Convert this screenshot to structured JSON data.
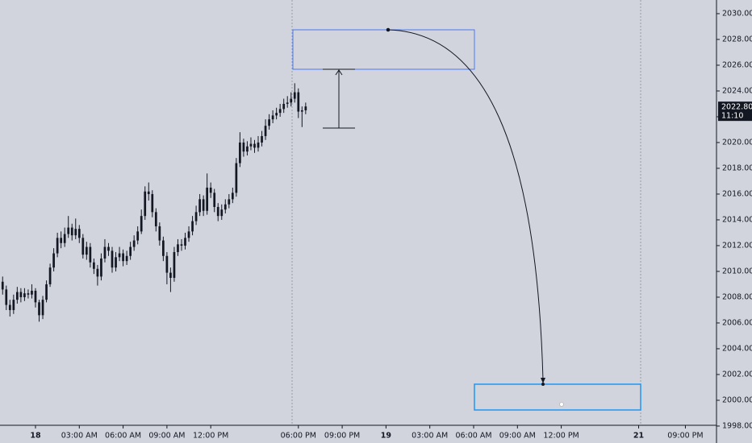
{
  "chart_data": {
    "type": "candlestick",
    "color": "#131722",
    "x": [
      -2.25,
      -2,
      -1.75,
      -1.5,
      -1.25,
      -1,
      -0.75,
      -0.5,
      -0.25,
      0,
      0.25,
      0.5,
      0.75,
      1,
      1.25,
      1.5,
      1.75,
      2,
      2.25,
      2.5,
      2.75,
      3,
      3.25,
      3.5,
      3.75,
      4,
      4.25,
      4.5,
      4.75,
      5,
      5.25,
      5.5,
      5.75,
      6,
      6.25,
      6.5,
      6.75,
      7,
      7.25,
      7.5,
      7.75,
      8,
      8.25,
      8.5,
      8.75,
      9,
      9.25,
      9.5,
      9.75,
      10,
      10.25,
      10.5,
      10.75,
      11,
      11.25,
      11.5,
      11.75,
      12,
      12.25,
      12.5,
      12.75,
      13,
      13.25,
      13.5,
      13.75,
      14,
      14.25,
      14.5,
      14.75,
      15,
      15.25,
      15.5,
      15.75,
      16,
      16.25,
      16.5,
      16.75,
      17,
      17.25,
      17.5,
      17.75,
      18,
      18.25,
      18.5
    ],
    "open": [
      2009.2,
      2008.6,
      2007.4,
      2007.0,
      2007.8,
      2008.4,
      2008.0,
      2008.3,
      2008.2,
      2008.5,
      2007.6,
      2006.6,
      2007.8,
      2009.0,
      2010.3,
      2011.4,
      2012.6,
      2012.2,
      2012.9,
      2013.4,
      2012.8,
      2013.3,
      2012.6,
      2011.3,
      2011.9,
      2010.7,
      2010.2,
      2009.6,
      2011.0,
      2011.9,
      2011.6,
      2010.3,
      2011.1,
      2011.4,
      2010.8,
      2011.2,
      2011.9,
      2012.4,
      2013.1,
      2014.3,
      2016.2,
      2016.0,
      2014.6,
      2013.5,
      2012.4,
      2011.2,
      2009.9,
      2009.5,
      2011.5,
      2012.1,
      2012.0,
      2012.6,
      2013.1,
      2013.9,
      2014.6,
      2015.6,
      2014.7,
      2016.5,
      2016.1,
      2015.0,
      2014.3,
      2014.8,
      2015.2,
      2015.6,
      2016.1,
      2018.4,
      2020.0,
      2019.3,
      2019.7,
      2019.9,
      2019.6,
      2020.0,
      2020.5,
      2021.3,
      2021.8,
      2022.1,
      2022.3,
      2022.6,
      2023.0,
      2023.1,
      2023.4,
      2023.9,
      2022.4,
      2022.5
    ],
    "high": [
      2009.6,
      2008.9,
      2007.8,
      2008.2,
      2008.8,
      2008.7,
      2008.7,
      2008.6,
      2009.0,
      2008.7,
      2007.8,
      2008.1,
      2009.3,
      2010.6,
      2011.8,
      2013.0,
      2013.1,
      2013.4,
      2014.3,
      2013.7,
      2014.1,
      2013.6,
      2012.9,
      2012.3,
      2012.2,
      2011.0,
      2010.5,
      2011.4,
      2012.5,
      2012.2,
      2011.9,
      2011.5,
      2011.9,
      2011.7,
      2011.6,
      2012.3,
      2012.8,
      2013.5,
      2014.8,
      2016.6,
      2016.9,
      2016.3,
      2014.9,
      2013.8,
      2012.7,
      2011.5,
      2010.3,
      2011.9,
      2012.5,
      2012.5,
      2013.0,
      2013.5,
      2014.3,
      2015.1,
      2016.0,
      2015.9,
      2017.6,
      2016.9,
      2016.4,
      2015.3,
      2015.2,
      2015.6,
      2016.0,
      2016.5,
      2018.8,
      2020.8,
      2020.3,
      2020.1,
      2020.4,
      2020.2,
      2020.5,
      2020.9,
      2021.8,
      2022.2,
      2022.5,
      2022.7,
      2023.0,
      2023.4,
      2023.6,
      2023.9,
      2024.6,
      2024.2,
      2022.8,
      2023.1
    ],
    "low": [
      2008.2,
      2007.0,
      2006.5,
      2006.7,
      2007.5,
      2007.6,
      2007.7,
      2007.9,
      2007.9,
      2007.2,
      2006.1,
      2006.3,
      2007.6,
      2008.8,
      2010.0,
      2011.1,
      2011.8,
      2011.9,
      2012.6,
      2012.4,
      2012.5,
      2012.2,
      2011.0,
      2010.9,
      2010.3,
      2009.8,
      2008.9,
      2009.3,
      2010.7,
      2011.2,
      2009.9,
      2010.0,
      2010.8,
      2010.4,
      2010.5,
      2010.9,
      2011.6,
      2012.1,
      2012.9,
      2014.0,
      2015.5,
      2014.2,
      2013.1,
      2012.0,
      2010.8,
      2009.0,
      2008.4,
      2009.2,
      2011.2,
      2011.6,
      2011.7,
      2012.3,
      2012.8,
      2013.6,
      2014.3,
      2014.3,
      2014.4,
      2015.7,
      2014.6,
      2013.9,
      2014.0,
      2014.5,
      2014.9,
      2015.3,
      2015.8,
      2018.1,
      2018.9,
      2019.0,
      2019.4,
      2019.2,
      2019.3,
      2019.7,
      2020.2,
      2021.0,
      2021.5,
      2021.8,
      2022.0,
      2022.3,
      2022.7,
      2022.8,
      2023.1,
      2021.9,
      2021.2,
      2022.2
    ],
    "close": [
      2008.6,
      2007.4,
      2007.0,
      2007.8,
      2008.4,
      2008.0,
      2008.3,
      2008.2,
      2008.5,
      2007.6,
      2006.6,
      2007.8,
      2009.0,
      2010.3,
      2011.4,
      2012.6,
      2012.2,
      2012.9,
      2013.4,
      2012.8,
      2013.3,
      2012.6,
      2011.3,
      2011.9,
      2010.7,
      2010.2,
      2009.6,
      2011.0,
      2011.9,
      2011.6,
      2010.3,
      2011.1,
      2011.4,
      2010.8,
      2011.2,
      2011.9,
      2012.4,
      2013.1,
      2014.3,
      2016.2,
      2016.0,
      2014.6,
      2013.5,
      2012.4,
      2011.2,
      2009.9,
      2009.5,
      2011.5,
      2012.1,
      2012.0,
      2012.6,
      2013.1,
      2013.9,
      2014.6,
      2015.6,
      2014.7,
      2016.5,
      2016.1,
      2015.0,
      2014.3,
      2014.8,
      2015.2,
      2015.6,
      2016.1,
      2018.4,
      2020.0,
      2019.3,
      2019.7,
      2019.9,
      2019.6,
      2020.0,
      2020.5,
      2021.3,
      2021.8,
      2022.1,
      2022.3,
      2022.6,
      2023.0,
      2023.1,
      2023.4,
      2023.9,
      2022.4,
      2022.5,
      2022.8
    ],
    "xlim": [
      -2.43,
      46.63
    ],
    "ylim": [
      1998.06,
      2031.06
    ],
    "xticks": [
      {
        "value": 0,
        "label": "18"
      },
      {
        "value": 3,
        "label": "03:00 AM"
      },
      {
        "value": 6,
        "label": "06:00 AM"
      },
      {
        "value": 9,
        "label": "09:00 AM"
      },
      {
        "value": 12,
        "label": "12:00 PM"
      },
      {
        "value": 18,
        "label": "06:00 PM"
      },
      {
        "value": 21,
        "label": "09:00 PM"
      },
      {
        "value": 24,
        "label": "19"
      },
      {
        "value": 27,
        "label": "03:00 AM"
      },
      {
        "value": 30,
        "label": "06:00 AM"
      },
      {
        "value": 33,
        "label": "09:00 AM"
      },
      {
        "value": 36,
        "label": "12:00 PM"
      },
      {
        "value": 41.3,
        "label": "21"
      },
      {
        "value": 44.5,
        "label": "09:00 PM"
      }
    ],
    "yticks": [
      {
        "value": 1998,
        "label": "1998.00"
      },
      {
        "value": 2000,
        "label": "2000.00"
      },
      {
        "value": 2002,
        "label": "2002.00"
      },
      {
        "value": 2004,
        "label": "2004.00"
      },
      {
        "value": 2006,
        "label": "2006.00"
      },
      {
        "value": 2008,
        "label": "2008.00"
      },
      {
        "value": 2010,
        "label": "2010.00"
      },
      {
        "value": 2012,
        "label": "2012.00"
      },
      {
        "value": 2014,
        "label": "2014.00"
      },
      {
        "value": 2016,
        "label": "2016.00"
      },
      {
        "value": 2018,
        "label": "2018.00"
      },
      {
        "value": 2020,
        "label": "2020.00"
      },
      {
        "value": 2022,
        "label": "2022.00"
      },
      {
        "value": 2024,
        "label": "2024.00"
      },
      {
        "value": 2026,
        "label": "2026.00"
      },
      {
        "value": 2028,
        "label": "2028.00"
      },
      {
        "value": 2030,
        "label": "2030.00"
      }
    ],
    "last_price": {
      "value": 2022.8,
      "label": "2022.80"
    },
    "countdown": "11:10"
  }
}
